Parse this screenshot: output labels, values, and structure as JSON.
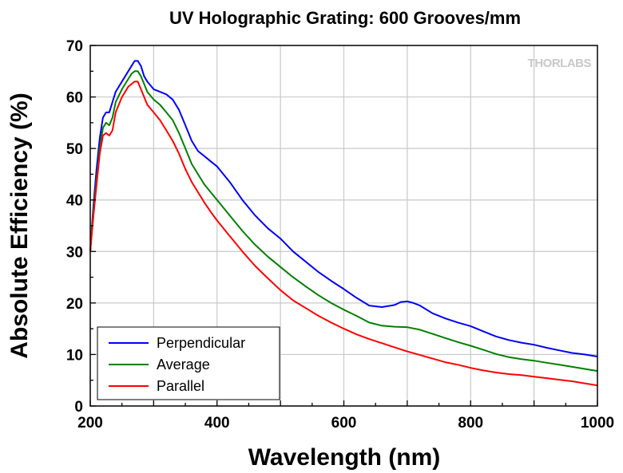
{
  "chart_data": {
    "type": "line",
    "title": "UV Holographic Grating: 600 Grooves/mm",
    "xlabel": "Wavelength (nm)",
    "ylabel": "Absolute Efficiency (%)",
    "xlim": [
      200,
      1000
    ],
    "ylim": [
      0,
      70
    ],
    "x_ticks": [
      "200",
      "400",
      "600",
      "800",
      "1000"
    ],
    "y_ticks": [
      "0",
      "10",
      "20",
      "30",
      "40",
      "50",
      "60",
      "70"
    ],
    "grid": true,
    "legend_position": "bottom-left",
    "watermark": "THORLABS",
    "series": [
      {
        "name": "Perpendicular",
        "color": "#0000ff",
        "points": [
          [
            200,
            30
          ],
          [
            205,
            39
          ],
          [
            210,
            46
          ],
          [
            215,
            52
          ],
          [
            220,
            56
          ],
          [
            225,
            57
          ],
          [
            230,
            57
          ],
          [
            235,
            59
          ],
          [
            240,
            61
          ],
          [
            250,
            63
          ],
          [
            260,
            65
          ],
          [
            265,
            66
          ],
          [
            270,
            67
          ],
          [
            275,
            67
          ],
          [
            280,
            66
          ],
          [
            285,
            64
          ],
          [
            290,
            63
          ],
          [
            300,
            61.5
          ],
          [
            310,
            61
          ],
          [
            320,
            60.5
          ],
          [
            330,
            59.5
          ],
          [
            340,
            57.5
          ],
          [
            350,
            54.5
          ],
          [
            360,
            51.5
          ],
          [
            370,
            49.5
          ],
          [
            380,
            48.5
          ],
          [
            390,
            47.5
          ],
          [
            400,
            46.5
          ],
          [
            420,
            43.5
          ],
          [
            440,
            40
          ],
          [
            460,
            37
          ],
          [
            480,
            34.5
          ],
          [
            500,
            32.5
          ],
          [
            520,
            30
          ],
          [
            540,
            28
          ],
          [
            560,
            26
          ],
          [
            580,
            24.3
          ],
          [
            600,
            22.7
          ],
          [
            620,
            21
          ],
          [
            640,
            19.5
          ],
          [
            660,
            19.2
          ],
          [
            680,
            19.6
          ],
          [
            690,
            20.2
          ],
          [
            700,
            20.3
          ],
          [
            710,
            20
          ],
          [
            720,
            19.5
          ],
          [
            740,
            18
          ],
          [
            760,
            17
          ],
          [
            780,
            16.2
          ],
          [
            800,
            15.5
          ],
          [
            820,
            14.5
          ],
          [
            840,
            13.5
          ],
          [
            860,
            12.8
          ],
          [
            880,
            12.3
          ],
          [
            900,
            11.9
          ],
          [
            920,
            11.3
          ],
          [
            940,
            10.8
          ],
          [
            960,
            10.3
          ],
          [
            980,
            10
          ],
          [
            1000,
            9.6
          ]
        ]
      },
      {
        "name": "Average",
        "color": "#008000",
        "points": [
          [
            200,
            30
          ],
          [
            205,
            38
          ],
          [
            210,
            44
          ],
          [
            215,
            50
          ],
          [
            220,
            54
          ],
          [
            225,
            55
          ],
          [
            230,
            54.5
          ],
          [
            235,
            56
          ],
          [
            240,
            59
          ],
          [
            250,
            61.5
          ],
          [
            260,
            63.5
          ],
          [
            265,
            64.5
          ],
          [
            270,
            65
          ],
          [
            275,
            65
          ],
          [
            280,
            64
          ],
          [
            285,
            62.5
          ],
          [
            290,
            61
          ],
          [
            300,
            59.5
          ],
          [
            310,
            58.5
          ],
          [
            320,
            57
          ],
          [
            330,
            55.5
          ],
          [
            340,
            53
          ],
          [
            350,
            50
          ],
          [
            360,
            47
          ],
          [
            370,
            45
          ],
          [
            380,
            43
          ],
          [
            390,
            41.5
          ],
          [
            400,
            40
          ],
          [
            420,
            37
          ],
          [
            440,
            34
          ],
          [
            460,
            31.3
          ],
          [
            480,
            29
          ],
          [
            500,
            27
          ],
          [
            520,
            25
          ],
          [
            540,
            23.2
          ],
          [
            560,
            21.5
          ],
          [
            580,
            20
          ],
          [
            600,
            18.7
          ],
          [
            620,
            17.5
          ],
          [
            640,
            16.2
          ],
          [
            660,
            15.6
          ],
          [
            680,
            15.4
          ],
          [
            700,
            15.3
          ],
          [
            720,
            14.8
          ],
          [
            740,
            14
          ],
          [
            760,
            13.2
          ],
          [
            780,
            12.4
          ],
          [
            800,
            11.7
          ],
          [
            820,
            10.9
          ],
          [
            840,
            10.1
          ],
          [
            860,
            9.5
          ],
          [
            880,
            9.1
          ],
          [
            900,
            8.8
          ],
          [
            920,
            8.4
          ],
          [
            940,
            8
          ],
          [
            960,
            7.6
          ],
          [
            980,
            7.2
          ],
          [
            1000,
            6.8
          ]
        ]
      },
      {
        "name": "Parallel",
        "color": "#ff0000",
        "points": [
          [
            200,
            30
          ],
          [
            205,
            37
          ],
          [
            210,
            43
          ],
          [
            215,
            49
          ],
          [
            220,
            52.5
          ],
          [
            225,
            53
          ],
          [
            230,
            52.5
          ],
          [
            235,
            53.5
          ],
          [
            240,
            57
          ],
          [
            250,
            60
          ],
          [
            260,
            62
          ],
          [
            265,
            62.5
          ],
          [
            270,
            63
          ],
          [
            275,
            63
          ],
          [
            280,
            61.5
          ],
          [
            285,
            60
          ],
          [
            290,
            58.5
          ],
          [
            300,
            57
          ],
          [
            310,
            55.5
          ],
          [
            320,
            53.5
          ],
          [
            330,
            51.5
          ],
          [
            340,
            49
          ],
          [
            350,
            46
          ],
          [
            360,
            43.5
          ],
          [
            370,
            41.5
          ],
          [
            380,
            39.5
          ],
          [
            390,
            37.7
          ],
          [
            400,
            36
          ],
          [
            420,
            33
          ],
          [
            440,
            30
          ],
          [
            460,
            27.2
          ],
          [
            480,
            24.8
          ],
          [
            500,
            22.5
          ],
          [
            520,
            20.5
          ],
          [
            540,
            19
          ],
          [
            560,
            17.5
          ],
          [
            580,
            16.2
          ],
          [
            600,
            15
          ],
          [
            620,
            13.9
          ],
          [
            640,
            13
          ],
          [
            660,
            12.2
          ],
          [
            680,
            11.4
          ],
          [
            700,
            10.6
          ],
          [
            720,
            9.9
          ],
          [
            740,
            9.2
          ],
          [
            760,
            8.5
          ],
          [
            780,
            8
          ],
          [
            800,
            7.4
          ],
          [
            820,
            6.9
          ],
          [
            840,
            6.5
          ],
          [
            860,
            6.2
          ],
          [
            880,
            6
          ],
          [
            900,
            5.7
          ],
          [
            920,
            5.4
          ],
          [
            940,
            5.1
          ],
          [
            960,
            4.8
          ],
          [
            980,
            4.4
          ],
          [
            1000,
            4
          ]
        ]
      }
    ]
  }
}
